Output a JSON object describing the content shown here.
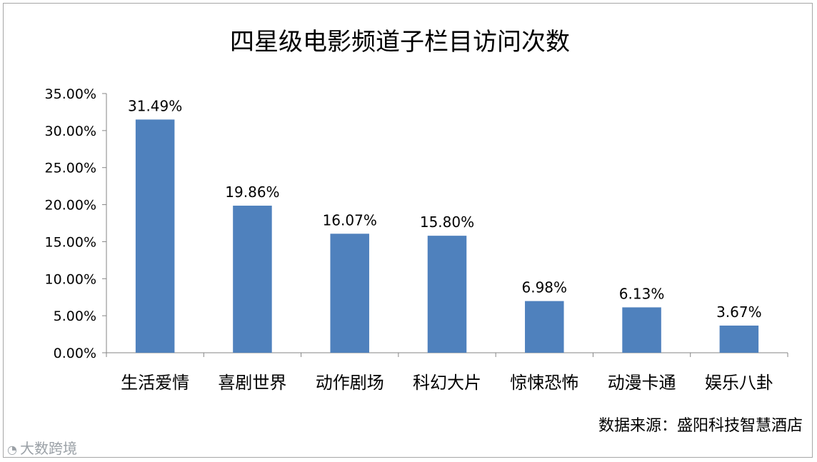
{
  "chart_data": {
    "type": "bar",
    "title": "四星级电影频道子栏目访问次数",
    "categories": [
      "生活爱情",
      "喜剧世界",
      "动作剧场",
      "科幻大片",
      "惊悚恐怖",
      "动漫卡通",
      "娱乐八卦"
    ],
    "values": [
      31.49,
      19.86,
      16.07,
      15.8,
      6.98,
      6.13,
      3.67
    ],
    "data_labels": [
      "31.49%",
      "19.86%",
      "16.07%",
      "15.80%",
      "6.98%",
      "6.13%",
      "3.67%"
    ],
    "yticks": [
      "0.00%",
      "5.00%",
      "10.00%",
      "15.00%",
      "20.00%",
      "25.00%",
      "30.00%",
      "35.00%"
    ],
    "ylim": [
      0,
      35
    ],
    "bar_color": "#4f81bd",
    "grid": false,
    "legend": "none"
  },
  "source_note": "数据来源：盛阳科技智慧酒店",
  "watermark": {
    "text": "大数跨境",
    "overlay_text": "盛阳科技智慧酒店"
  }
}
